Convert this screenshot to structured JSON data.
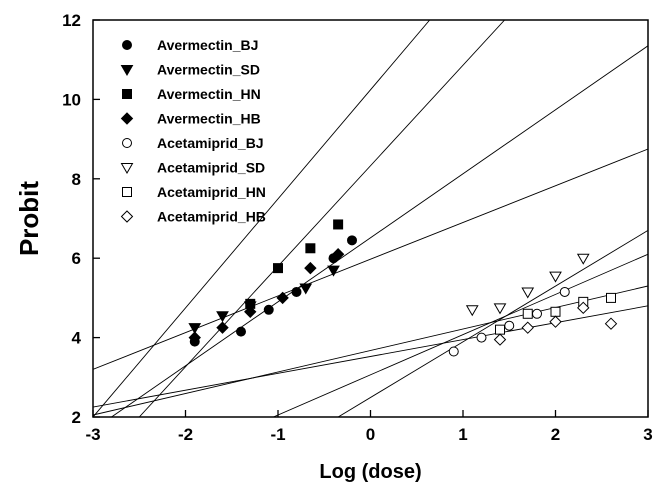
{
  "chart_data": {
    "type": "scatter",
    "xlabel": "Log (dose)",
    "ylabel": "Probit",
    "xlim": [
      -3,
      3
    ],
    "ylim": [
      2,
      12
    ],
    "x_ticks": [
      "-3",
      "-2",
      "-1",
      "0",
      "1",
      "2",
      "3"
    ],
    "y_ticks": [
      "2",
      "4",
      "6",
      "8",
      "10",
      "12"
    ],
    "grid": false,
    "legend_position": "top-left",
    "series": [
      {
        "name": "Avermectin_BJ",
        "marker": "circle-filled",
        "points": [
          [
            -1.9,
            3.9
          ],
          [
            -1.4,
            4.15
          ],
          [
            -1.1,
            4.7
          ],
          [
            -0.8,
            5.15
          ],
          [
            -0.4,
            6.0
          ],
          [
            -0.2,
            6.45
          ]
        ],
        "fit": [
          [
            -3,
            2.0
          ],
          [
            0.64,
            12.0
          ]
        ]
      },
      {
        "name": "Avermectin_SD",
        "marker": "triangle-down-filled",
        "points": [
          [
            -1.9,
            4.25
          ],
          [
            -1.6,
            4.55
          ],
          [
            -1.3,
            4.8
          ],
          [
            -0.7,
            5.25
          ],
          [
            -0.4,
            5.7
          ]
        ],
        "fit": [
          [
            -3,
            3.2
          ],
          [
            3,
            8.75
          ]
        ]
      },
      {
        "name": "Avermectin_HN",
        "marker": "square-filled",
        "points": [
          [
            -1.3,
            4.85
          ],
          [
            -1.0,
            5.75
          ],
          [
            -0.65,
            6.25
          ],
          [
            -0.35,
            6.85
          ]
        ],
        "fit": [
          [
            -2.5,
            2.0
          ],
          [
            1.45,
            12.0
          ]
        ]
      },
      {
        "name": "Avermectin_HB",
        "marker": "diamond-filled",
        "points": [
          [
            -1.9,
            4.0
          ],
          [
            -1.6,
            4.25
          ],
          [
            -1.3,
            4.65
          ],
          [
            -0.95,
            5.0
          ],
          [
            -0.65,
            5.75
          ],
          [
            -0.35,
            6.1
          ]
        ],
        "fit": [
          [
            -2.8,
            2.0
          ],
          [
            3,
            11.35
          ]
        ]
      },
      {
        "name": "Acetamiprid_BJ",
        "marker": "circle-open",
        "points": [
          [
            0.9,
            3.65
          ],
          [
            1.2,
            4.0
          ],
          [
            1.5,
            4.3
          ],
          [
            1.8,
            4.6
          ],
          [
            2.1,
            5.15
          ]
        ],
        "fit": [
          [
            -1.05,
            2.0
          ],
          [
            3,
            6.1
          ]
        ]
      },
      {
        "name": "Acetamiprid_SD",
        "marker": "triangle-down-open",
        "points": [
          [
            1.1,
            4.7
          ],
          [
            1.4,
            4.75
          ],
          [
            1.7,
            5.15
          ],
          [
            2.0,
            5.55
          ],
          [
            2.3,
            6.0
          ]
        ],
        "fit": [
          [
            -0.35,
            2.0
          ],
          [
            3,
            6.7
          ]
        ]
      },
      {
        "name": "Acetamiprid_HN",
        "marker": "square-open",
        "points": [
          [
            1.4,
            4.2
          ],
          [
            1.7,
            4.6
          ],
          [
            2.0,
            4.65
          ],
          [
            2.3,
            4.9
          ],
          [
            2.6,
            5.0
          ]
        ],
        "fit": [
          [
            -3,
            2.05
          ],
          [
            3,
            5.3
          ]
        ]
      },
      {
        "name": "Acetamiprid_HB",
        "marker": "diamond-open",
        "points": [
          [
            1.4,
            3.95
          ],
          [
            1.7,
            4.25
          ],
          [
            2.0,
            4.4
          ],
          [
            2.3,
            4.75
          ],
          [
            2.6,
            4.35
          ]
        ],
        "fit": [
          [
            -3,
            2.25
          ],
          [
            3,
            4.8
          ]
        ]
      }
    ]
  }
}
